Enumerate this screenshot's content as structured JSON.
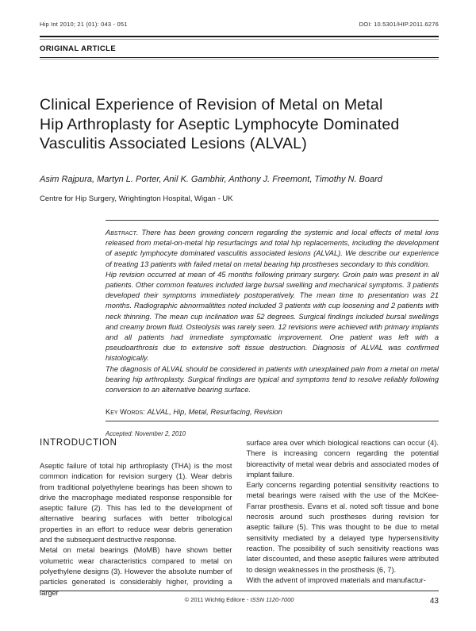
{
  "header": {
    "journal_ref": "Hip Int 2010; 21 (01): 043 - 051",
    "doi": "DOI: 10.5301/HIP.2011.6276",
    "article_type": "ORIGINAL ARTICLE"
  },
  "title": {
    "lines": [
      "Clinical Experience of Revision of Metal on Metal",
      "Hip Arthroplasty for Aseptic Lymphocyte Dominated",
      "Vasculitis Associated Lesions (ALVAL)"
    ]
  },
  "authors": "Asim Rajpura, Martyn L. Porter, Anil K. Gambhir, Anthony J. Freemont, Timothy N. Board",
  "affiliation": "Centre for Hip Surgery, Wrightington Hospital, Wigan - UK",
  "abstract": {
    "label": "Abstract.",
    "p1": "There has been growing concern regarding the systemic and local effects of metal ions released from metal-on-metal hip resurfacings and total hip replacements, including the development of aseptic lymphocyte dominated vasculitis associated lesions (ALVAL). We describe our experience of treating 13 patients with failed metal on metal bearing hip prostheses secondary to this condition.",
    "p2": "Hip revision occurred at mean of 45 months following primary surgery. Groin pain was present in all patients. Other common features included large bursal swelling and mechanical symptoms. 3 patients developed their symptoms immediately postoperatively. The mean time to presentation was 21 months. Radiographic abnormalitites noted included 3 patients with cup loosening and 2 patients with neck thinning. The mean cup inclination was 52 degrees. Surgical findings included bursal swellings and creamy brown fluid. Osteolysis was rarely seen. 12 revisions were achieved with primary implants and all patients had immediate symptomatic improvement. One patient was left with a pseudoarthrosis due to extensive soft tissue destruction. Diagnosis of ALVAL was confirmed histologically.",
    "p3": "The diagnosis of ALVAL should be considered in patients with unexplained pain from a metal on metal bearing hip arthroplasty. Surgical findings are typical and symptoms tend to resolve reliably following conversion to an alternative bearing surface."
  },
  "keywords": {
    "label": "Key Words:",
    "text": "ALVAL, Hip, Metal, Resurfacing, Revision"
  },
  "accepted": "Accepted: November 2, 2010",
  "body": {
    "intro_heading": "INTRODUCTION",
    "left_column": [
      "Aseptic failure of total hip arthroplasty (THA) is the most common indication for revision surgery (1). Wear debris from traditional polyethylene bearings has been shown to drive the macrophage mediated response responsible for aseptic failure (2). This has led to the development of alternative bearing surfaces with better tribological properties in an effort to reduce wear debris generation and the subsequent destructive response.",
      "Metal on metal bearings (MoMB) have shown better volumetric wear characteristics compared to metal on polyethylene designs (3). However the absolute number of particles generated is considerably higher, providing a larger"
    ],
    "right_column": [
      "surface area over which biological reactions can occur (4). There is increasing concern regarding the potential bioreactivity of metal wear debris and associated modes of implant failure.",
      "Early concerns regarding potential sensitivity reactions to metal bearings were raised with the use of the McKee-Farrar prosthesis. Evans et al. noted soft tissue and bone necrosis around such prostheses during revision for aseptic failure (5). This was thought to be due to metal sensitivity mediated by a delayed type hypersensitivity reaction. The possibility of such sensitivity reactions was later discounted, and these aseptic failures were attributed to design weaknesses in the prosthesis (6, 7).",
      "With the advent of improved materials and manufactur-"
    ]
  },
  "footer": {
    "copyright": "© 2011 Wichtig Editore -",
    "issn": "ISSN 1120-7000",
    "page_number": "43"
  }
}
